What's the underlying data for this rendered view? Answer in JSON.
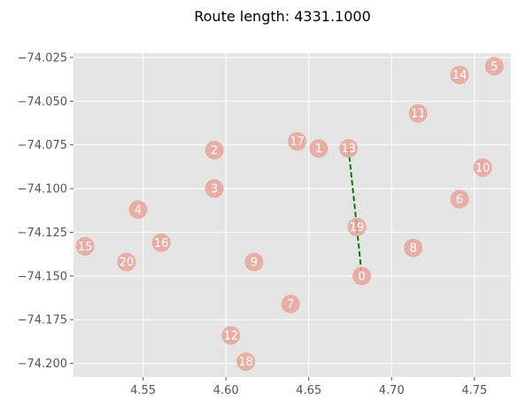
{
  "title": "Route length: 4331.1000",
  "chart_data": {
    "type": "scatter",
    "title": "Route length: 4331.1000",
    "xlabel": "",
    "ylabel": "",
    "xlim": [
      4.508,
      4.772
    ],
    "ylim": [
      -74.2078,
      -74.0225
    ],
    "x_ticks": [
      4.55,
      4.6,
      4.65,
      4.7,
      4.75
    ],
    "x_tick_labels": [
      "4.55",
      "4.60",
      "4.65",
      "4.70",
      "4.75"
    ],
    "y_ticks": [
      -74.025,
      -74.05,
      -74.075,
      -74.1,
      -74.125,
      -74.15,
      -74.175,
      -74.2
    ],
    "y_tick_labels": [
      "−74.025",
      "−74.050",
      "−74.075",
      "−74.100",
      "−74.125",
      "−74.150",
      "−74.175",
      "−74.200"
    ],
    "grid": true,
    "background": "#e5e5e5",
    "grid_color": "#ffffff",
    "point_color": "#e8a49a",
    "route_color": "#008000",
    "nodes": [
      {
        "label": "0",
        "x": 4.682,
        "y": -74.15
      },
      {
        "label": "1",
        "x": 4.656,
        "y": -74.077
      },
      {
        "label": "2",
        "x": 4.593,
        "y": -74.078
      },
      {
        "label": "3",
        "x": 4.593,
        "y": -74.1
      },
      {
        "label": "4",
        "x": 4.547,
        "y": -74.112
      },
      {
        "label": "5",
        "x": 4.762,
        "y": -74.03
      },
      {
        "label": "6",
        "x": 4.741,
        "y": -74.106
      },
      {
        "label": "7",
        "x": 4.639,
        "y": -74.166
      },
      {
        "label": "8",
        "x": 4.713,
        "y": -74.134
      },
      {
        "label": "9",
        "x": 4.617,
        "y": -74.142
      },
      {
        "label": "10",
        "x": 4.755,
        "y": -74.088
      },
      {
        "label": "11",
        "x": 4.716,
        "y": -74.057
      },
      {
        "label": "12",
        "x": 4.603,
        "y": -74.184
      },
      {
        "label": "13",
        "x": 4.674,
        "y": -74.077
      },
      {
        "label": "14",
        "x": 4.741,
        "y": -74.035
      },
      {
        "label": "15",
        "x": 4.515,
        "y": -74.133
      },
      {
        "label": "16",
        "x": 4.561,
        "y": -74.131
      },
      {
        "label": "17",
        "x": 4.643,
        "y": -74.073
      },
      {
        "label": "18",
        "x": 4.612,
        "y": -74.199
      },
      {
        "label": "19",
        "x": 4.679,
        "y": -74.122
      },
      {
        "label": "20",
        "x": 4.54,
        "y": -74.142
      }
    ],
    "route": [
      {
        "x": 4.674,
        "y": -74.077
      },
      {
        "x": 4.679,
        "y": -74.122
      },
      {
        "x": 4.682,
        "y": -74.15
      }
    ]
  }
}
